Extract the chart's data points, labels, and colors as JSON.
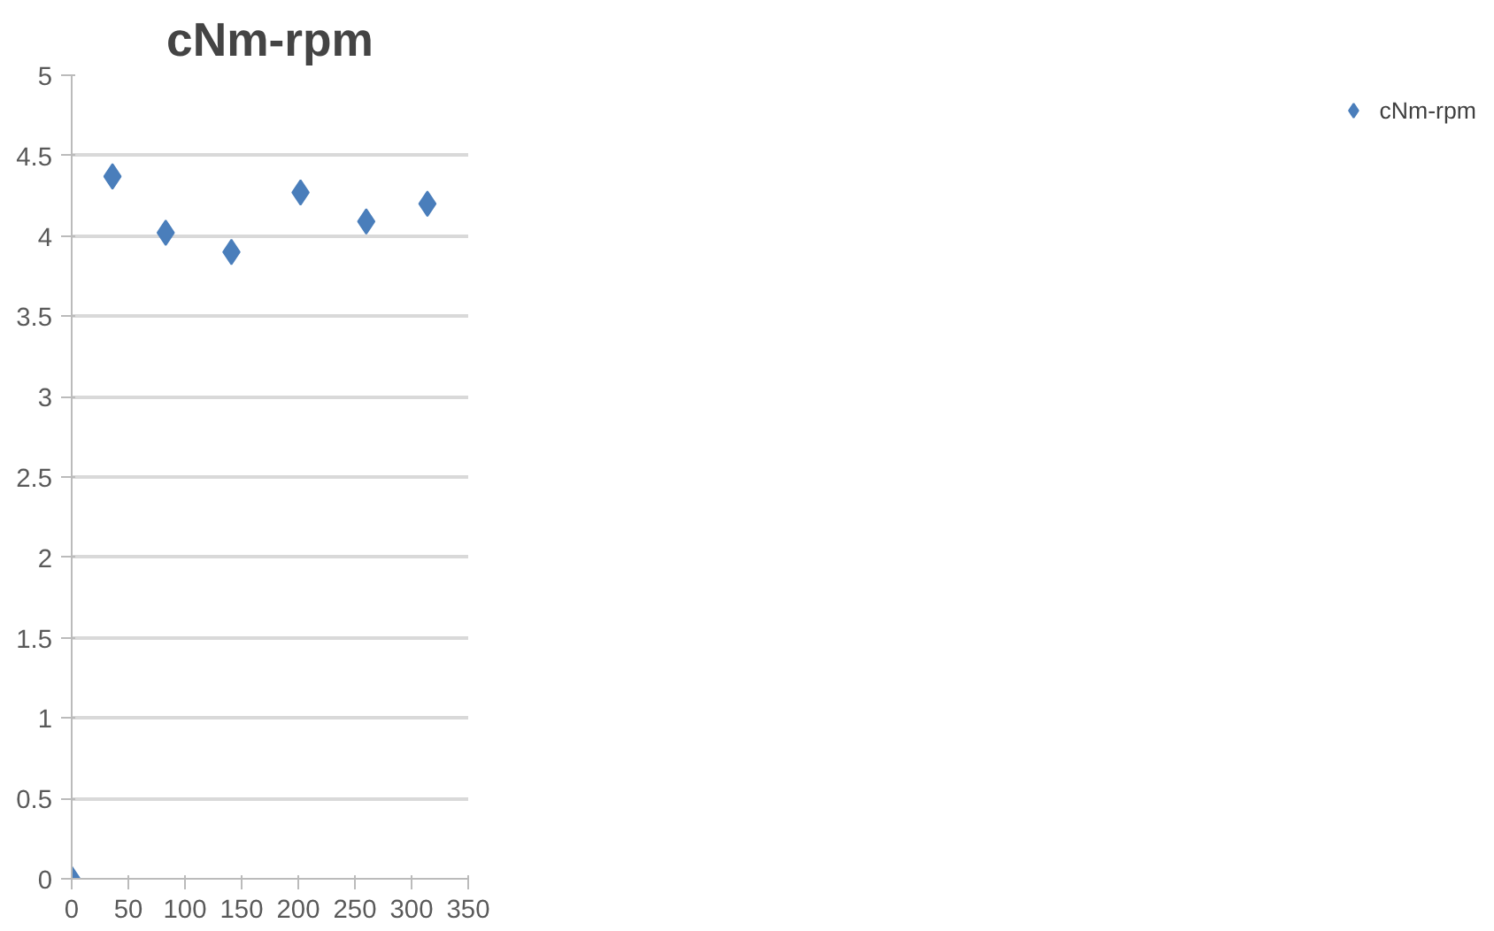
{
  "chart_data": {
    "type": "scatter",
    "title": "cNm-rpm",
    "series": [
      {
        "name": "cNm-rpm",
        "color": "#4a7ebb",
        "x": [
          0,
          36,
          83,
          141,
          202,
          260,
          314
        ],
        "values": [
          0,
          4.37,
          4.02,
          3.9,
          4.27,
          4.09,
          4.2
        ]
      }
    ],
    "xlim": [
      0,
      350
    ],
    "xticks": [
      0,
      50,
      100,
      150,
      200,
      250,
      300,
      350
    ],
    "ylim": [
      0,
      5
    ],
    "yticks": [
      0,
      0.5,
      1,
      1.5,
      2,
      2.5,
      3,
      3.5,
      4,
      4.5,
      5
    ],
    "grid": "y",
    "legend": "right",
    "marker": "diamond"
  }
}
